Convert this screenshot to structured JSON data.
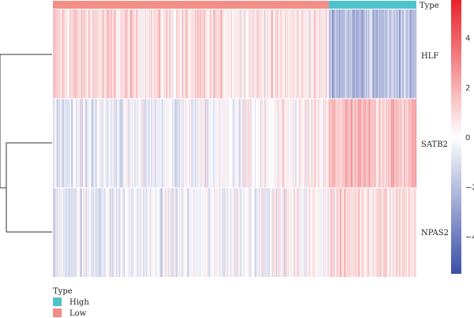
{
  "chart_data": {
    "type": "heatmap",
    "rows": [
      "HLF",
      "SATB2",
      "NPAS2"
    ],
    "annotation": {
      "title": "Type",
      "groups": [
        {
          "name": "Low",
          "color": "#f28e86",
          "count": 284
        },
        {
          "name": "High",
          "color": "#4ec3cc",
          "count": 90
        }
      ]
    },
    "row_pattern": [
      {
        "row": "HLF",
        "low_group_mean": 1.0,
        "high_group_mean": -2.0
      },
      {
        "row": "SATB2",
        "low_group_mean": -0.6,
        "high_group_mean": 1.5
      },
      {
        "row": "NPAS2",
        "low_group_mean": -0.6,
        "high_group_mean": 1.0
      }
    ],
    "colorbar": {
      "min": -5.5,
      "max": 5.5,
      "ticks": [
        "4",
        "2",
        "0",
        "−2",
        "−4"
      ],
      "tick_values": [
        4,
        2,
        0,
        -2,
        -4
      ],
      "colors": {
        "low": "#3b4fa8",
        "mid": "#ffffff",
        "high": "#e8232a"
      }
    },
    "dendrogram": "rows clustered: SATB2 and NPAS2 join first, then HLF",
    "legend": {
      "title": "Type",
      "items": [
        "High",
        "Low"
      ]
    },
    "cell_value_range": [
      -5.5,
      5.5
    ]
  }
}
